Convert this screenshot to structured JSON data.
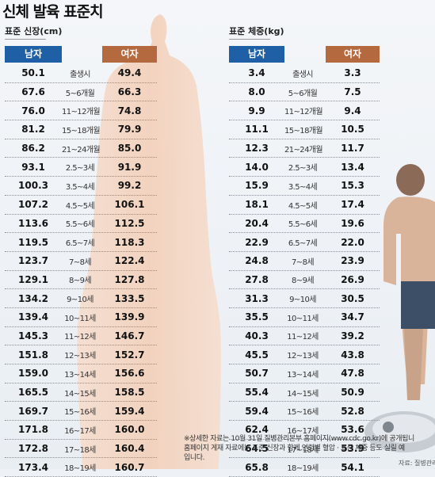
{
  "title": "신체 발육 표준치",
  "height": {
    "subtitle": "표준 신장(cm)",
    "male_header": "남자",
    "female_header": "여자",
    "rows": [
      {
        "male": "50.1",
        "age": "출생시",
        "female": "49.4"
      },
      {
        "male": "67.6",
        "age": "5~6개월",
        "female": "66.3"
      },
      {
        "male": "76.0",
        "age": "11~12개월",
        "female": "74.8"
      },
      {
        "male": "81.2",
        "age": "15~18개월",
        "female": "79.9"
      },
      {
        "male": "86.2",
        "age": "21~24개월",
        "female": "85.0"
      },
      {
        "male": "93.1",
        "age": "2.5~3세",
        "female": "91.9"
      },
      {
        "male": "100.3",
        "age": "3.5~4세",
        "female": "99.2"
      },
      {
        "male": "107.2",
        "age": "4.5~5세",
        "female": "106.1"
      },
      {
        "male": "113.6",
        "age": "5.5~6세",
        "female": "112.5"
      },
      {
        "male": "119.5",
        "age": "6.5~7세",
        "female": "118.3"
      },
      {
        "male": "123.7",
        "age": "7~8세",
        "female": "122.4"
      },
      {
        "male": "129.1",
        "age": "8~9세",
        "female": "127.8"
      },
      {
        "male": "134.2",
        "age": "9~10세",
        "female": "133.5"
      },
      {
        "male": "139.4",
        "age": "10~11세",
        "female": "139.9"
      },
      {
        "male": "145.3",
        "age": "11~12세",
        "female": "146.7"
      },
      {
        "male": "151.8",
        "age": "12~13세",
        "female": "152.7"
      },
      {
        "male": "159.0",
        "age": "13~14세",
        "female": "156.6"
      },
      {
        "male": "165.5",
        "age": "14~15세",
        "female": "158.5"
      },
      {
        "male": "169.7",
        "age": "15~16세",
        "female": "159.4"
      },
      {
        "male": "171.8",
        "age": "16~17세",
        "female": "160.0"
      },
      {
        "male": "172.8",
        "age": "17~18세",
        "female": "160.4"
      },
      {
        "male": "173.4",
        "age": "18~19세",
        "female": "160.7"
      }
    ]
  },
  "weight": {
    "subtitle": "표준 체중(kg)",
    "male_header": "남자",
    "female_header": "여자",
    "rows": [
      {
        "male": "3.4",
        "age": "출생시",
        "female": "3.3"
      },
      {
        "male": "8.0",
        "age": "5~6개월",
        "female": "7.5"
      },
      {
        "male": "9.9",
        "age": "11~12개월",
        "female": "9.4"
      },
      {
        "male": "11.1",
        "age": "15~18개월",
        "female": "10.5"
      },
      {
        "male": "12.3",
        "age": "21~24개월",
        "female": "11.7"
      },
      {
        "male": "14.0",
        "age": "2.5~3세",
        "female": "13.4"
      },
      {
        "male": "15.9",
        "age": "3.5~4세",
        "female": "15.3"
      },
      {
        "male": "18.1",
        "age": "4.5~5세",
        "female": "17.4"
      },
      {
        "male": "20.4",
        "age": "5.5~6세",
        "female": "19.6"
      },
      {
        "male": "22.9",
        "age": "6.5~7세",
        "female": "22.0"
      },
      {
        "male": "24.8",
        "age": "7~8세",
        "female": "23.9"
      },
      {
        "male": "27.8",
        "age": "8~9세",
        "female": "26.9"
      },
      {
        "male": "31.3",
        "age": "9~10세",
        "female": "30.5"
      },
      {
        "male": "35.5",
        "age": "10~11세",
        "female": "34.7"
      },
      {
        "male": "40.3",
        "age": "11~12세",
        "female": "39.2"
      },
      {
        "male": "45.5",
        "age": "12~13세",
        "female": "43.8"
      },
      {
        "male": "50.7",
        "age": "13~14세",
        "female": "47.8"
      },
      {
        "male": "55.4",
        "age": "14~15세",
        "female": "50.9"
      },
      {
        "male": "59.4",
        "age": "15~16세",
        "female": "52.8"
      },
      {
        "male": "62.4",
        "age": "16~17세",
        "female": "53.6"
      },
      {
        "male": "64.5",
        "age": "17~18세",
        "female": "53.9"
      },
      {
        "male": "65.8",
        "age": "18~19세",
        "female": "54.1"
      }
    ]
  },
  "footnote": {
    "line1": "※상세한 자료는 10월 31일 질병관리본부 홈페이지(www.cdc.go.kr)에 공개됩니",
    "line2": "홈페이지 게재 자료에는 표준 신장과 함께 연령별 혈압 · 표준 체중 등도 실릴 예",
    "line3": "입니다."
  },
  "source": "자료: 질병관리본",
  "colors": {
    "male_header": "#1f5fa5",
    "female_header": "#b5693f",
    "silhouette": "#f3d3bd"
  }
}
